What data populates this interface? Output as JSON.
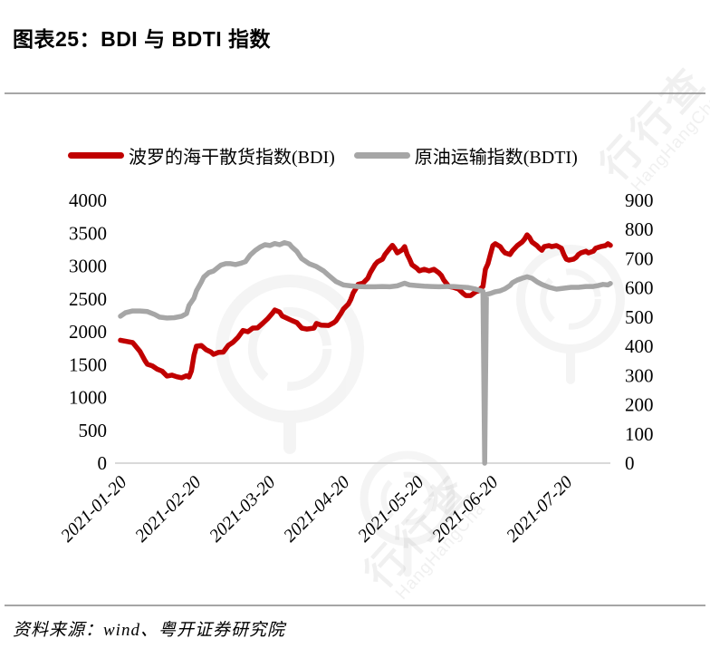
{
  "title": "图表25：BDI 与 BDTI 指数",
  "source": "资料来源：wind、粤开证券研究院",
  "watermark": {
    "brand": "行行查",
    "latin": "HangHangCha"
  },
  "colors": {
    "bdi_red": "#C00000",
    "bdti_gray": "#A6A6A6",
    "axis_line": "#D9D9D9",
    "divider_rule": "#A6A6A6",
    "tick_text": "#000000"
  },
  "chart_data": {
    "type": "line",
    "title": "图表25：BDI 与 BDTI 指数",
    "legend_position": "top",
    "grid": false,
    "x_ticks": [
      "2021-01-20",
      "2021-02-20",
      "2021-03-20",
      "2021-04-20",
      "2021-05-20",
      "2021-06-20",
      "2021-07-20"
    ],
    "x_tick_rotation": -45,
    "left_axis": {
      "series": "BDI",
      "min": 0,
      "max": 4000,
      "step": 500
    },
    "right_axis": {
      "series": "BDTI",
      "min": 0,
      "max": 900,
      "step": 100
    },
    "x_unit": "days_since_2021-01-20",
    "series": [
      {
        "name": "波罗的海干散货指数(BDI)",
        "color": "#C00000",
        "axis": "left",
        "points": [
          [
            0,
            1870
          ],
          [
            3,
            1850
          ],
          [
            5,
            1835
          ],
          [
            6,
            1790
          ],
          [
            8,
            1700
          ],
          [
            10,
            1560
          ],
          [
            11,
            1505
          ],
          [
            13,
            1480
          ],
          [
            15,
            1430
          ],
          [
            17,
            1400
          ],
          [
            19,
            1325
          ],
          [
            21,
            1340
          ],
          [
            23,
            1315
          ],
          [
            25,
            1300
          ],
          [
            27,
            1330
          ],
          [
            28,
            1310
          ],
          [
            29,
            1405
          ],
          [
            30,
            1640
          ],
          [
            31,
            1780
          ],
          [
            33,
            1790
          ],
          [
            35,
            1725
          ],
          [
            37,
            1690
          ],
          [
            38,
            1655
          ],
          [
            40,
            1685
          ],
          [
            42,
            1690
          ],
          [
            44,
            1790
          ],
          [
            46,
            1840
          ],
          [
            48,
            1915
          ],
          [
            50,
            2020
          ],
          [
            52,
            2000
          ],
          [
            54,
            2055
          ],
          [
            56,
            2060
          ],
          [
            58,
            2125
          ],
          [
            60,
            2195
          ],
          [
            62,
            2280
          ],
          [
            63,
            2330
          ],
          [
            65,
            2300
          ],
          [
            66,
            2240
          ],
          [
            68,
            2205
          ],
          [
            70,
            2170
          ],
          [
            72,
            2140
          ],
          [
            74,
            2055
          ],
          [
            76,
            2040
          ],
          [
            79,
            2055
          ],
          [
            80,
            2125
          ],
          [
            82,
            2100
          ],
          [
            85,
            2095
          ],
          [
            87,
            2135
          ],
          [
            88,
            2165
          ],
          [
            90,
            2280
          ],
          [
            91,
            2345
          ],
          [
            93,
            2420
          ],
          [
            94,
            2490
          ],
          [
            95,
            2590
          ],
          [
            96,
            2650
          ],
          [
            97,
            2720
          ],
          [
            99,
            2740
          ],
          [
            101,
            2815
          ],
          [
            102,
            2900
          ],
          [
            104,
            3025
          ],
          [
            105,
            3065
          ],
          [
            107,
            3105
          ],
          [
            108,
            3175
          ],
          [
            110,
            3270
          ],
          [
            111,
            3315
          ],
          [
            112,
            3265
          ],
          [
            113,
            3200
          ],
          [
            115,
            3245
          ],
          [
            116,
            3295
          ],
          [
            117,
            3180
          ],
          [
            118,
            3105
          ],
          [
            119,
            3020
          ],
          [
            121,
            2965
          ],
          [
            122,
            2925
          ],
          [
            124,
            2950
          ],
          [
            126,
            2925
          ],
          [
            128,
            2950
          ],
          [
            130,
            2895
          ],
          [
            131,
            2855
          ],
          [
            132,
            2785
          ],
          [
            134,
            2690
          ],
          [
            136,
            2675
          ],
          [
            138,
            2650
          ],
          [
            140,
            2580
          ],
          [
            141,
            2550
          ],
          [
            143,
            2550
          ],
          [
            145,
            2605
          ],
          [
            146,
            2620
          ],
          [
            148,
            2690
          ],
          [
            149,
            2950
          ],
          [
            150,
            3035
          ],
          [
            151,
            3175
          ],
          [
            152,
            3310
          ],
          [
            153,
            3340
          ],
          [
            155,
            3295
          ],
          [
            156,
            3240
          ],
          [
            157,
            3200
          ],
          [
            159,
            3175
          ],
          [
            160,
            3230
          ],
          [
            161,
            3270
          ],
          [
            162,
            3310
          ],
          [
            164,
            3365
          ],
          [
            165,
            3410
          ],
          [
            166,
            3475
          ],
          [
            167,
            3435
          ],
          [
            168,
            3365
          ],
          [
            170,
            3310
          ],
          [
            171,
            3270
          ],
          [
            172,
            3240
          ],
          [
            173,
            3295
          ],
          [
            175,
            3310
          ],
          [
            176,
            3295
          ],
          [
            178,
            3310
          ],
          [
            180,
            3270
          ],
          [
            181,
            3175
          ],
          [
            182,
            3105
          ],
          [
            183,
            3090
          ],
          [
            185,
            3105
          ],
          [
            186,
            3130
          ],
          [
            187,
            3175
          ],
          [
            188,
            3200
          ],
          [
            190,
            3225
          ],
          [
            191,
            3200
          ],
          [
            193,
            3225
          ],
          [
            194,
            3270
          ],
          [
            196,
            3295
          ],
          [
            198,
            3310
          ],
          [
            199,
            3340
          ],
          [
            200,
            3315
          ]
        ]
      },
      {
        "name": "原油运输指数(BDTI)",
        "color": "#A6A6A6",
        "axis": "right",
        "points": [
          [
            0,
            503
          ],
          [
            2,
            515
          ],
          [
            5,
            521
          ],
          [
            8,
            521
          ],
          [
            11,
            519
          ],
          [
            14,
            509
          ],
          [
            16,
            500
          ],
          [
            19,
            497
          ],
          [
            22,
            498
          ],
          [
            25,
            503
          ],
          [
            27,
            512
          ],
          [
            28,
            540
          ],
          [
            30,
            565
          ],
          [
            31,
            590
          ],
          [
            33,
            620
          ],
          [
            34,
            637
          ],
          [
            36,
            652
          ],
          [
            38,
            658
          ],
          [
            41,
            678
          ],
          [
            43,
            683
          ],
          [
            45,
            683
          ],
          [
            47,
            680
          ],
          [
            49,
            684
          ],
          [
            51,
            690
          ],
          [
            53,
            713
          ],
          [
            55,
            728
          ],
          [
            57,
            740
          ],
          [
            59,
            748
          ],
          [
            61,
            745
          ],
          [
            63,
            752
          ],
          [
            65,
            748
          ],
          [
            67,
            755
          ],
          [
            69,
            750
          ],
          [
            70,
            740
          ],
          [
            72,
            725
          ],
          [
            74,
            700
          ],
          [
            77,
            683
          ],
          [
            80,
            673
          ],
          [
            83,
            658
          ],
          [
            85,
            643
          ],
          [
            88,
            622
          ],
          [
            91,
            610
          ],
          [
            94,
            607
          ],
          [
            97,
            605
          ],
          [
            100,
            604
          ],
          [
            104,
            604
          ],
          [
            107,
            605
          ],
          [
            110,
            604
          ],
          [
            113,
            607
          ],
          [
            116,
            616
          ],
          [
            118,
            610
          ],
          [
            121,
            608
          ],
          [
            124,
            606
          ],
          [
            127,
            605
          ],
          [
            130,
            604
          ],
          [
            133,
            605
          ],
          [
            136,
            605
          ],
          [
            139,
            603
          ],
          [
            142,
            601
          ],
          [
            145,
            596
          ],
          [
            147,
            591
          ],
          [
            148,
            588
          ],
          [
            148.7,
            0
          ],
          [
            149.4,
            578
          ],
          [
            151,
            581
          ],
          [
            153,
            587
          ],
          [
            155,
            590
          ],
          [
            157,
            597
          ],
          [
            159,
            608
          ],
          [
            160,
            618
          ],
          [
            162,
            627
          ],
          [
            164,
            633
          ],
          [
            166,
            638
          ],
          [
            168,
            633
          ],
          [
            170,
            621
          ],
          [
            172,
            612
          ],
          [
            175,
            602
          ],
          [
            178,
            596
          ],
          [
            181,
            599
          ],
          [
            184,
            602
          ],
          [
            187,
            602
          ],
          [
            190,
            605
          ],
          [
            193,
            605
          ],
          [
            195,
            608
          ],
          [
            197,
            612
          ],
          [
            199,
            610
          ],
          [
            200,
            615
          ]
        ]
      }
    ]
  }
}
